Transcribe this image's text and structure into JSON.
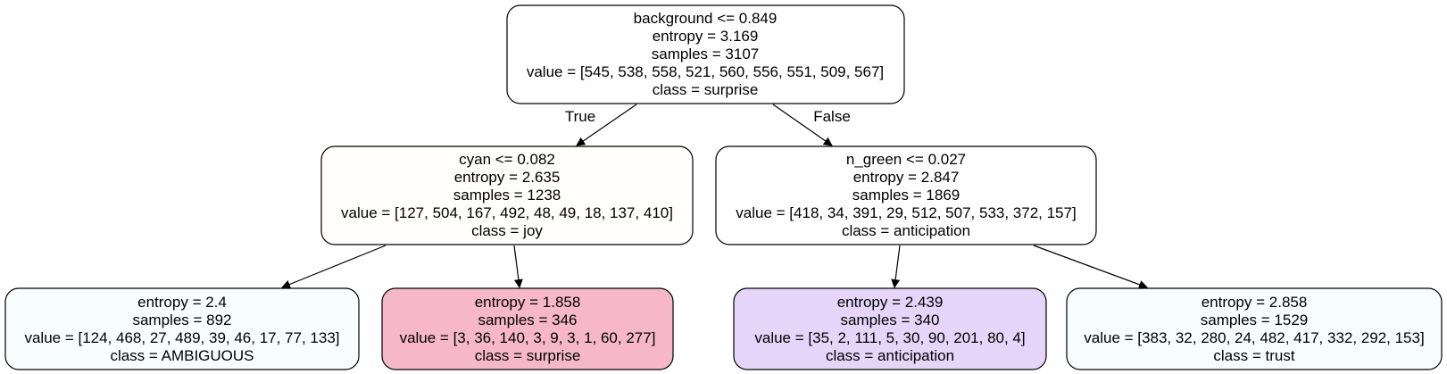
{
  "tree": {
    "nodes": [
      {
        "id": "root",
        "fill": "#ffffff",
        "lines": [
          "background <= 0.849",
          "entropy = 3.169",
          "samples = 3107",
          "value = [545, 538, 558, 521, 560, 556, 551, 509, 567]",
          "class = surprise"
        ]
      },
      {
        "id": "left",
        "fill": "#fffefc",
        "lines": [
          "cyan <= 0.082",
          "entropy = 2.635",
          "samples = 1238",
          "value = [127, 504, 167, 492, 48, 49, 18, 137, 410]",
          "class = joy"
        ]
      },
      {
        "id": "right",
        "fill": "#fefefe",
        "lines": [
          "n_green <= 0.027",
          "entropy = 2.847",
          "samples = 1869",
          "value = [418, 34, 391, 29, 512, 507, 533, 372, 157]",
          "class = anticipation"
        ]
      },
      {
        "id": "left-left",
        "fill": "#f8fefd",
        "lines": [
          "entropy = 2.4",
          "samples = 892",
          "value = [124, 468, 27, 489, 39, 46, 17, 77, 133]",
          "class = AMBIGUOUS"
        ]
      },
      {
        "id": "left-right",
        "fill": "#f6b8c8",
        "lines": [
          "entropy = 1.858",
          "samples = 346",
          "value = [3, 36, 140, 3, 9, 3, 1, 60, 277]",
          "class = surprise"
        ]
      },
      {
        "id": "right-left",
        "fill": "#e5d5f9",
        "lines": [
          "entropy = 2.439",
          "samples = 340",
          "value = [35, 2, 111, 5, 30, 90, 201, 80, 4]",
          "class = anticipation"
        ]
      },
      {
        "id": "right-right",
        "fill": "#f7fdfe",
        "lines": [
          "entropy = 2.858",
          "samples = 1529",
          "value = [383, 32, 280, 24, 482, 417, 332, 292, 153]",
          "class = trust"
        ]
      }
    ],
    "edge_labels": {
      "true_label": "True",
      "false_label": "False"
    }
  }
}
